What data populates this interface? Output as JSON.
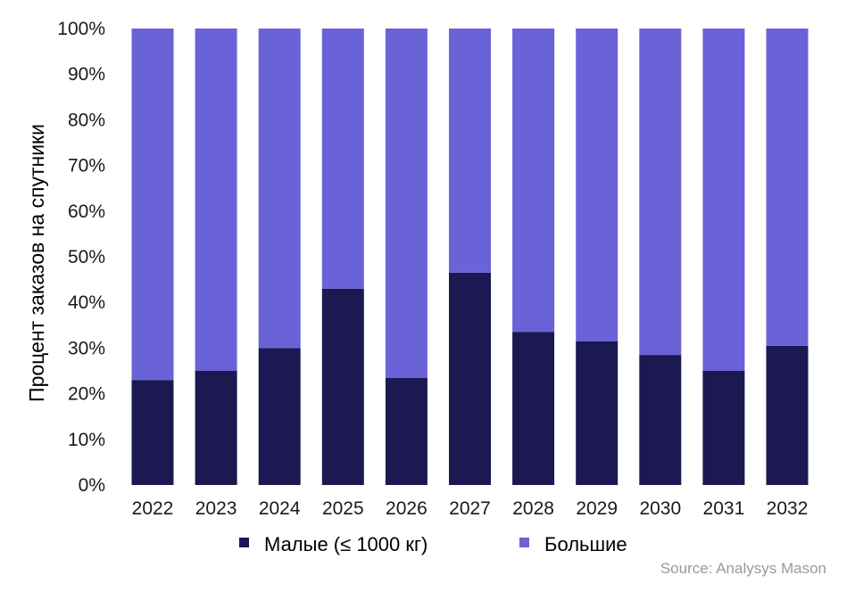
{
  "chart_data": {
    "type": "bar",
    "stacked": true,
    "categories": [
      "2022",
      "2023",
      "2024",
      "2025",
      "2026",
      "2027",
      "2028",
      "2029",
      "2030",
      "2031",
      "2032"
    ],
    "series": [
      {
        "name": "Малые (≤ 1000 кг)",
        "color": "#1c1852",
        "values": [
          23,
          25,
          30,
          43,
          23.5,
          46.5,
          33.5,
          31.5,
          28.5,
          25,
          30.5
        ]
      },
      {
        "name": "Большие",
        "color": "#6a63d7",
        "values": [
          77,
          75,
          70,
          57,
          76.5,
          53.5,
          66.5,
          68.5,
          71.5,
          75,
          69.5
        ]
      }
    ],
    "ylabel": "Процент заказов на спутники",
    "yticks": [
      "0%",
      "10%",
      "20%",
      "30%",
      "40%",
      "50%",
      "60%",
      "70%",
      "80%",
      "90%",
      "100%"
    ],
    "ylim": [
      0,
      100
    ],
    "grid": false,
    "legend_position": "bottom",
    "source": "Source: Analysys Mason"
  }
}
